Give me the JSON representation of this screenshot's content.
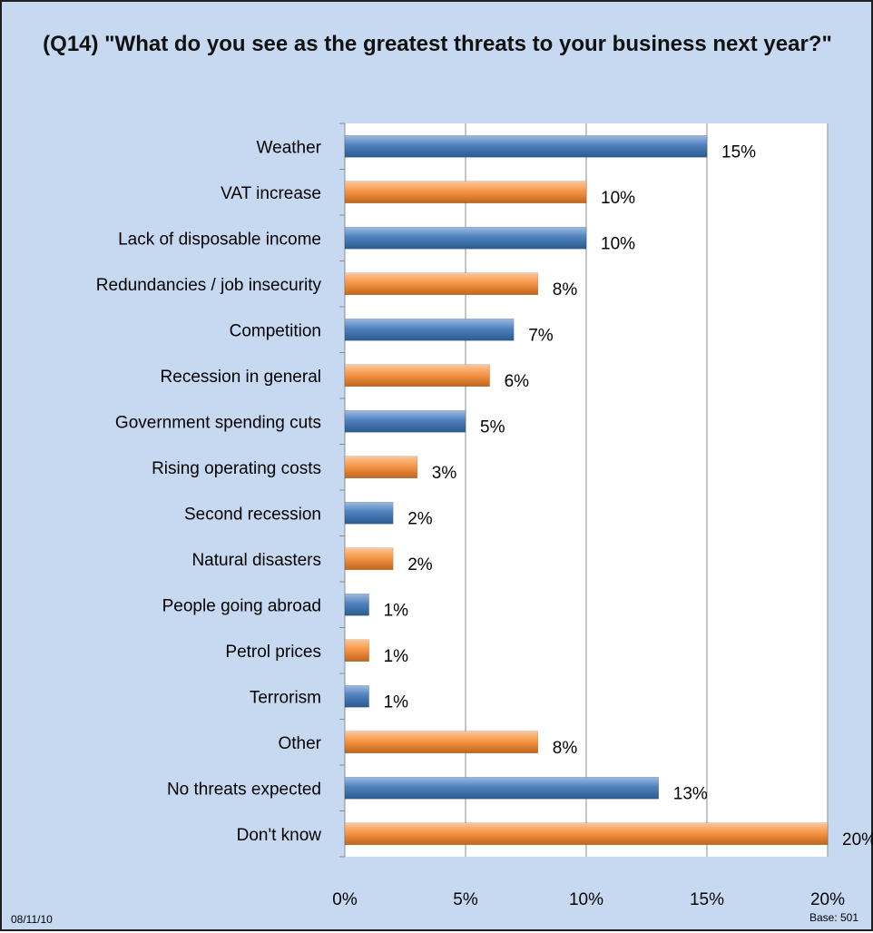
{
  "colors": {
    "background": "#c6d9f1",
    "plot_area": "#ffffff",
    "bar_blue": "#4f81bd",
    "bar_orange": "#f79646"
  },
  "footer": {
    "date": "08/11/10",
    "base": "Base: 501"
  },
  "chart_data": {
    "type": "bar",
    "orientation": "horizontal",
    "title": "(Q14) \"What do you see as the greatest threats to your business next year?\"",
    "xlabel": "",
    "ylabel": "",
    "xlim": [
      0,
      20
    ],
    "x_ticks": [
      0,
      5,
      10,
      15,
      20
    ],
    "tick_suffix": "%",
    "grid": true,
    "legend": "none",
    "categories": [
      "Weather",
      "VAT increase",
      "Lack of disposable income",
      "Redundancies / job insecurity",
      "Competition",
      "Recession in general",
      "Government spending cuts",
      "Rising operating costs",
      "Second recession",
      "Natural disasters",
      "People going abroad",
      "Petrol prices",
      "Terrorism",
      "Other",
      "No threats expected",
      "Don't know"
    ],
    "values": [
      15,
      10,
      10,
      8,
      7,
      6,
      5,
      3,
      2,
      2,
      1,
      1,
      1,
      8,
      13,
      20
    ],
    "value_labels": [
      "15%",
      "10%",
      "10%",
      "8%",
      "7%",
      "6%",
      "5%",
      "3%",
      "2%",
      "2%",
      "1%",
      "1%",
      "1%",
      "8%",
      "13%",
      "20%"
    ],
    "bar_colors": [
      "blue",
      "orange",
      "blue",
      "orange",
      "blue",
      "orange",
      "blue",
      "orange",
      "blue",
      "orange",
      "blue",
      "orange",
      "blue",
      "orange",
      "blue",
      "orange"
    ]
  }
}
